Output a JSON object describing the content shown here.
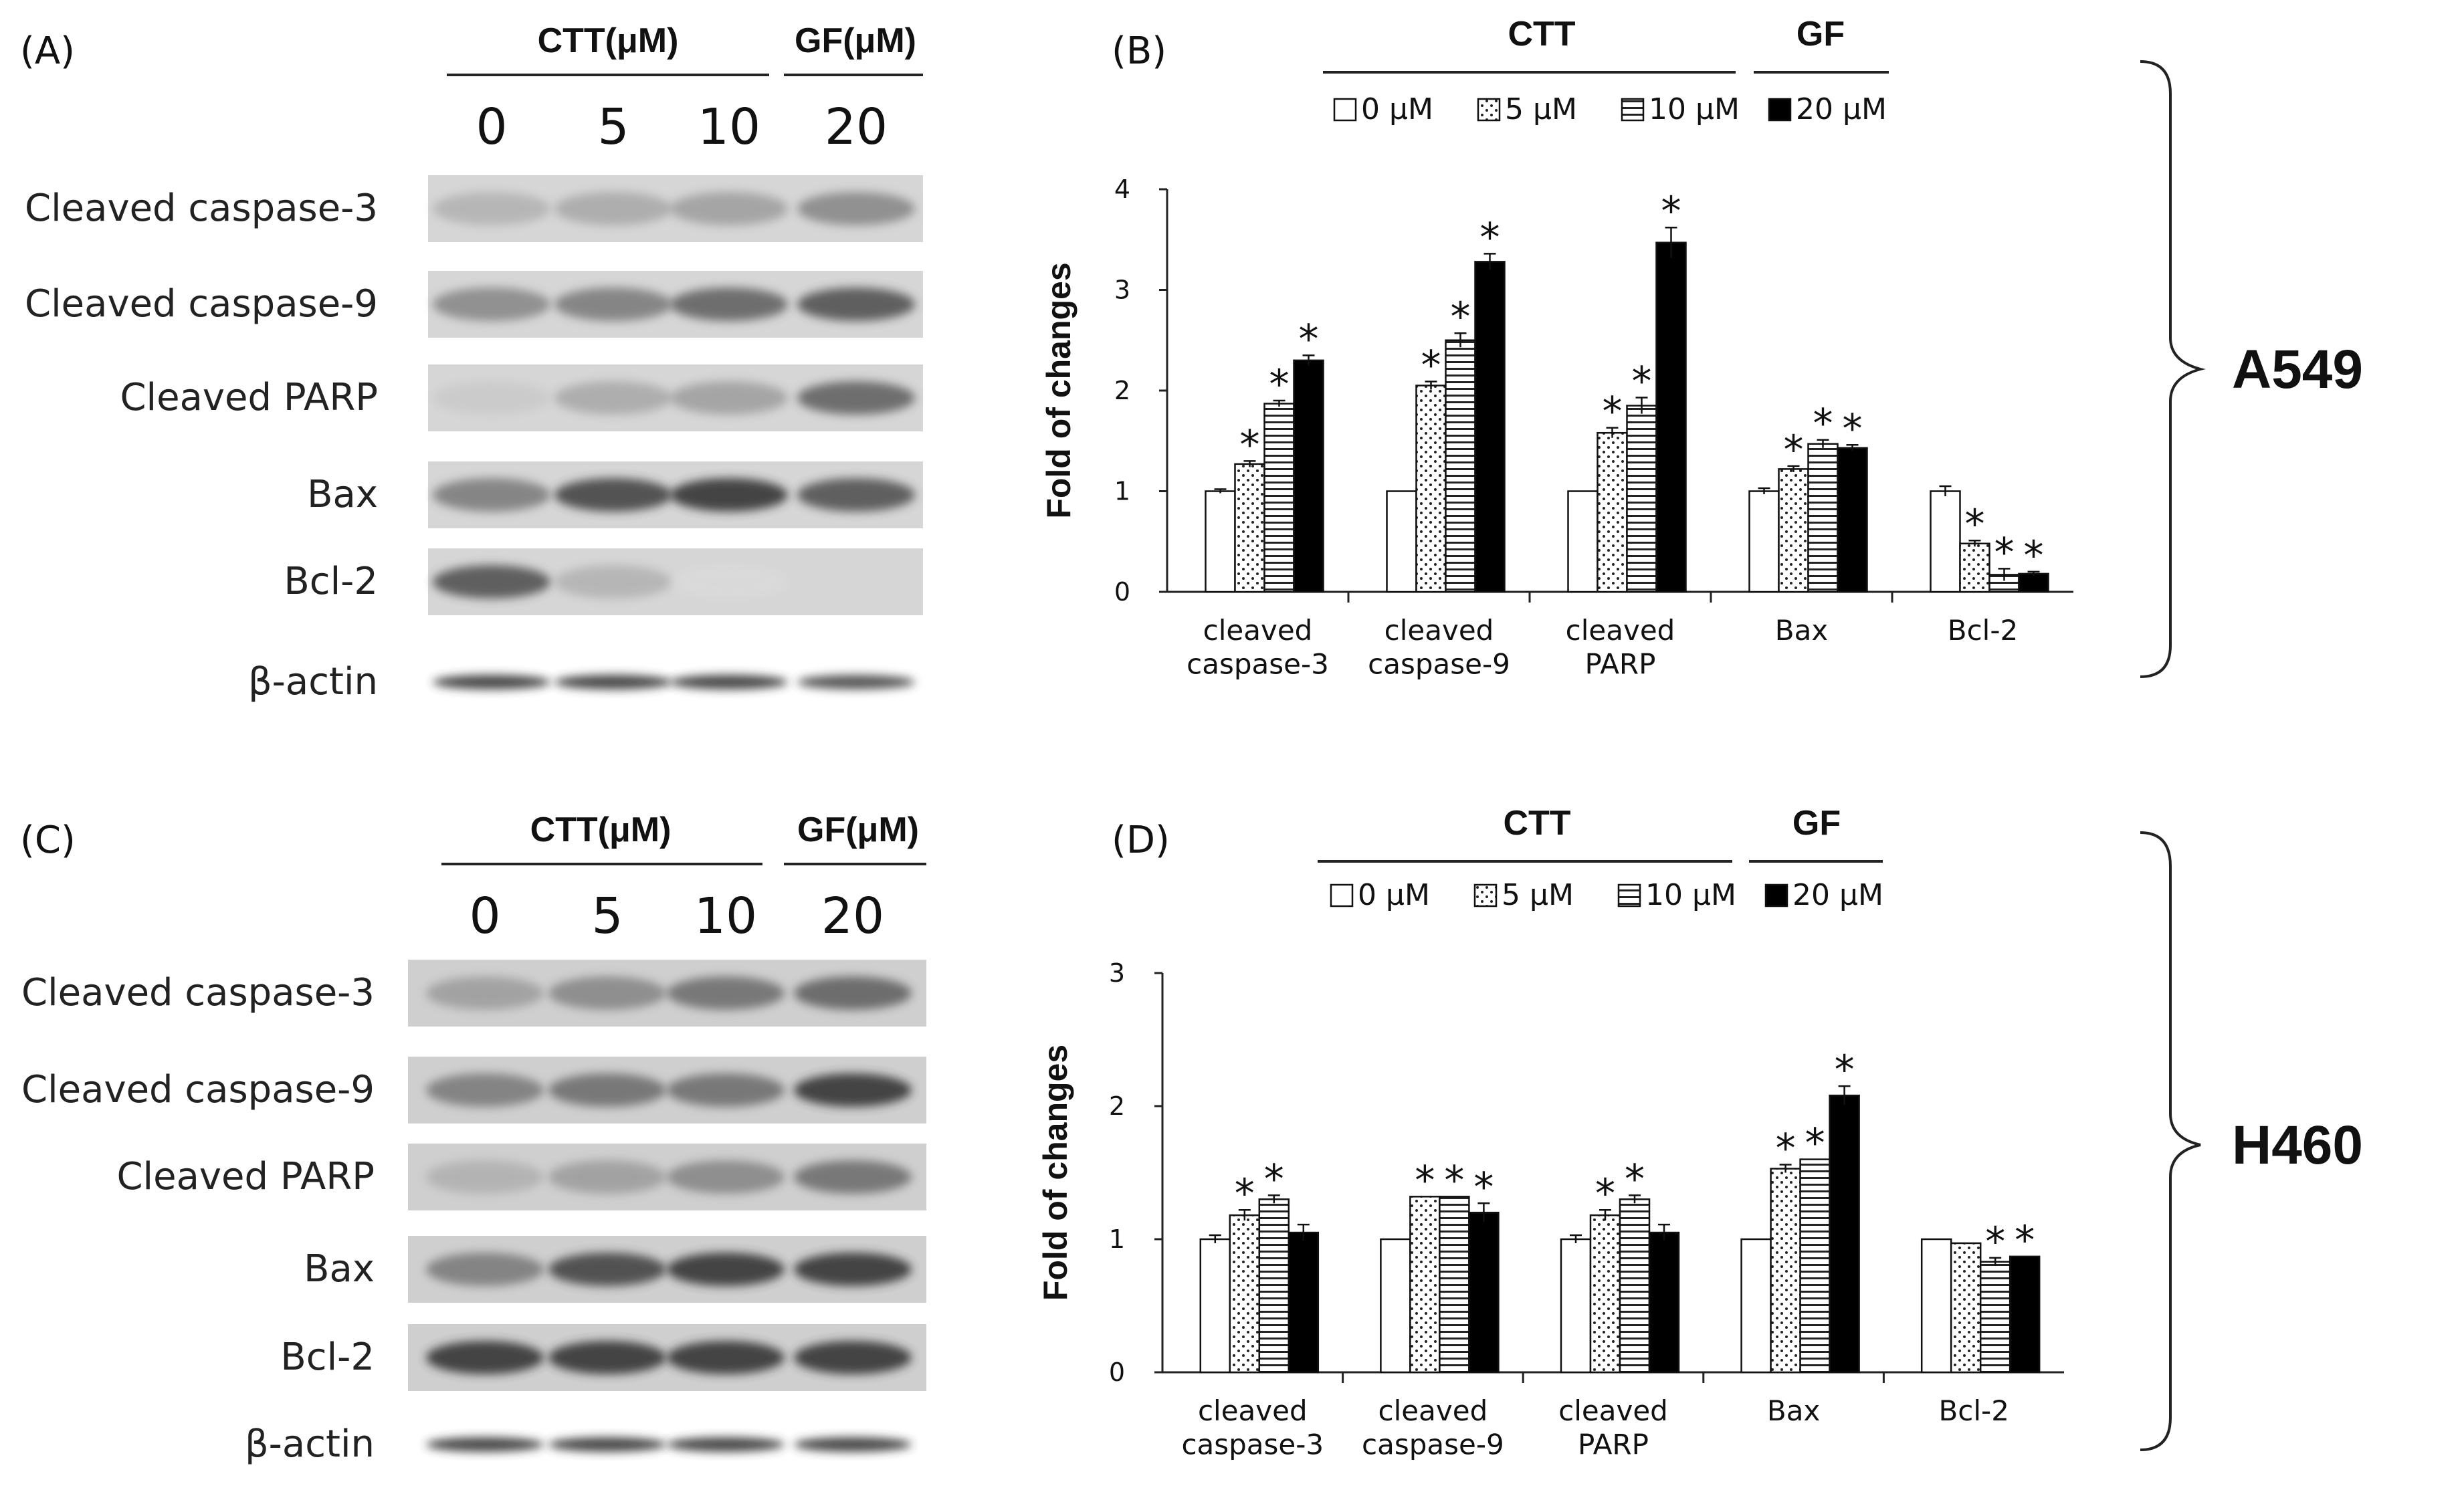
{
  "panels": {
    "A": {
      "label": "(A)",
      "header_ctt": "CTT(μM)",
      "header_gf": "GF(μM)",
      "lanes": [
        "0",
        "5",
        "10",
        "20"
      ],
      "blots": [
        {
          "label": "Cleaved caspase-3",
          "intensity": [
            0.35,
            0.4,
            0.45,
            0.55
          ]
        },
        {
          "label": "Cleaved caspase-9",
          "intensity": [
            0.55,
            0.6,
            0.7,
            0.75
          ]
        },
        {
          "label": "Cleaved PARP",
          "intensity": [
            0.2,
            0.4,
            0.45,
            0.7
          ]
        },
        {
          "label": "Bax",
          "intensity": [
            0.6,
            0.8,
            0.85,
            0.75
          ]
        },
        {
          "label": "Bcl-2",
          "intensity": [
            0.75,
            0.35,
            0.05,
            0.1
          ]
        },
        {
          "label": "β-actin",
          "intensity": [
            0.85,
            0.85,
            0.85,
            0.8
          ]
        }
      ]
    },
    "C": {
      "label": "(C)",
      "header_ctt": "CTT(μM)",
      "header_gf": "GF(μM)",
      "lanes": [
        "0",
        "5",
        "10",
        "20"
      ],
      "blots": [
        {
          "label": "Cleaved caspase-3",
          "intensity": [
            0.45,
            0.55,
            0.65,
            0.7
          ]
        },
        {
          "label": "Cleaved caspase-9",
          "intensity": [
            0.6,
            0.65,
            0.65,
            0.85
          ]
        },
        {
          "label": "Cleaved PARP",
          "intensity": [
            0.35,
            0.45,
            0.55,
            0.65
          ]
        },
        {
          "label": "Bax",
          "intensity": [
            0.6,
            0.8,
            0.85,
            0.85
          ]
        },
        {
          "label": "Bcl-2",
          "intensity": [
            0.85,
            0.85,
            0.85,
            0.85
          ]
        },
        {
          "label": "β-actin",
          "intensity": [
            0.85,
            0.85,
            0.85,
            0.85
          ]
        }
      ]
    },
    "cell_lines": [
      "A549",
      "H460"
    ]
  },
  "colors": {
    "black": "#000000",
    "white": "#ffffff",
    "axis": "#222222"
  },
  "chart_data": [
    {
      "type": "bar",
      "panel": "(B)",
      "group_ctt": "CTT",
      "group_gf": "GF",
      "ylabel": "Fold of changes",
      "ylim": [
        0,
        4
      ],
      "yticks": [
        "0",
        "1",
        "2",
        "3",
        "4"
      ],
      "categories": [
        "cleaved caspase-3",
        "cleaved caspase-9",
        "cleaved PARP",
        "Bax",
        "Bcl-2"
      ],
      "series": [
        {
          "name": "0 μM",
          "pattern": "white",
          "values": [
            1.0,
            1.0,
            1.0,
            1.0,
            1.0
          ],
          "err": [
            0.02,
            0.0,
            0.0,
            0.03,
            0.05
          ],
          "sig": [
            false,
            false,
            false,
            false,
            false
          ]
        },
        {
          "name": "5 μM",
          "pattern": "dots",
          "values": [
            1.27,
            2.05,
            1.58,
            1.22,
            0.48
          ],
          "err": [
            0.03,
            0.04,
            0.05,
            0.03,
            0.03
          ],
          "sig": [
            true,
            true,
            true,
            true,
            true
          ]
        },
        {
          "name": "10 μM",
          "pattern": "hlines",
          "values": [
            1.87,
            2.5,
            1.85,
            1.47,
            0.17
          ],
          "err": [
            0.03,
            0.07,
            0.08,
            0.04,
            0.06
          ],
          "sig": [
            true,
            true,
            true,
            true,
            true
          ]
        },
        {
          "name": "20 μM",
          "pattern": "black",
          "values": [
            2.3,
            3.28,
            3.47,
            1.43,
            0.18
          ],
          "err": [
            0.05,
            0.08,
            0.15,
            0.03,
            0.02
          ],
          "sig": [
            true,
            true,
            true,
            true,
            true
          ]
        }
      ]
    },
    {
      "type": "bar",
      "panel": "(D)",
      "group_ctt": "CTT",
      "group_gf": "GF",
      "ylabel": "Fold of changes",
      "ylim": [
        0,
        3
      ],
      "yticks": [
        "0",
        "1",
        "2",
        "3"
      ],
      "categories": [
        "cleaved caspase-3",
        "cleaved caspase-9",
        "cleaved PARP",
        "Bax",
        "Bcl-2"
      ],
      "series": [
        {
          "name": "0 μM",
          "pattern": "white",
          "values": [
            1.0,
            1.0,
            1.0,
            1.0,
            1.0
          ],
          "err": [
            0.03,
            0.0,
            0.03,
            0.0,
            0.0
          ],
          "sig": [
            false,
            false,
            false,
            false,
            false
          ]
        },
        {
          "name": "5 μM",
          "pattern": "dots",
          "values": [
            1.18,
            1.32,
            1.18,
            1.53,
            0.97
          ],
          "err": [
            0.04,
            0.0,
            0.04,
            0.03,
            0.0
          ],
          "sig": [
            true,
            true,
            true,
            true,
            false
          ]
        },
        {
          "name": "10 μM",
          "pattern": "hlines",
          "values": [
            1.3,
            1.32,
            1.3,
            1.6,
            0.83
          ],
          "err": [
            0.03,
            0.0,
            0.03,
            0.0,
            0.03
          ],
          "sig": [
            true,
            true,
            true,
            true,
            true
          ]
        },
        {
          "name": "20 μM",
          "pattern": "black",
          "values": [
            1.05,
            1.2,
            1.05,
            2.08,
            0.87
          ],
          "err": [
            0.06,
            0.07,
            0.06,
            0.07,
            0.0
          ],
          "sig": [
            false,
            true,
            false,
            true,
            true
          ]
        }
      ]
    }
  ]
}
